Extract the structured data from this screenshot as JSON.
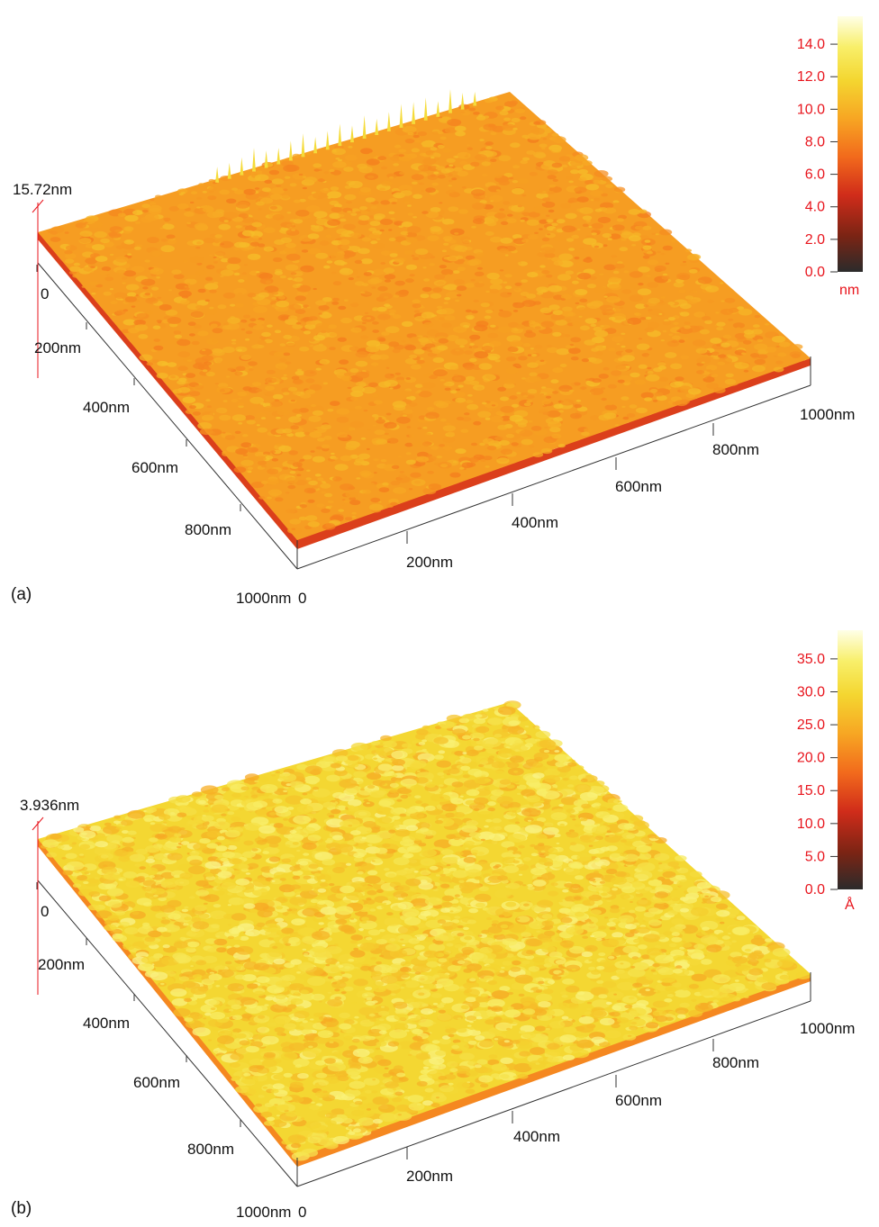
{
  "figure": {
    "panels": [
      {
        "tag": "(a)",
        "zmax_label": "15.72nm",
        "x_axis_ticks": [
          "0",
          "200nm",
          "400nm",
          "600nm",
          "800nm",
          "1000nm"
        ],
        "y_axis_ticks": [
          "0",
          "200nm",
          "400nm",
          "600nm",
          "800nm",
          "1000nm"
        ],
        "colorbar": {
          "unit": "nm",
          "ticks": [
            "0.0",
            "2.0",
            "4.0",
            "6.0",
            "8.0",
            "10.0",
            "12.0",
            "14.0"
          ],
          "tick_values": [
            0,
            2,
            4,
            6,
            8,
            10,
            12,
            14
          ],
          "range": [
            0,
            15.72
          ]
        },
        "surface": {
          "roughness": "low",
          "base_level": 0.55
        }
      },
      {
        "tag": "(b)",
        "zmax_label": "3.936nm",
        "x_axis_ticks": [
          "0",
          "200nm",
          "400nm",
          "600nm",
          "800nm",
          "1000nm"
        ],
        "y_axis_ticks": [
          "0",
          "200nm",
          "400nm",
          "600nm",
          "800nm",
          "1000nm"
        ],
        "colorbar": {
          "unit": "Å",
          "ticks": [
            "0.0",
            "5.0",
            "10.0",
            "15.0",
            "20.0",
            "25.0",
            "30.0",
            "35.0"
          ],
          "tick_values": [
            0,
            5,
            10,
            15,
            20,
            25,
            30,
            35
          ],
          "range": [
            0,
            39.36
          ]
        },
        "surface": {
          "roughness": "high",
          "base_level": 0.72
        }
      }
    ],
    "colormap": [
      "#2b2b2b",
      "#7a2414",
      "#d02c1a",
      "#f26a1c",
      "#f7a623",
      "#f4d630",
      "#f8ef6a",
      "#ffffe8"
    ],
    "axis_color": "#333333",
    "tick_label_color_colorbar": "#e8141c"
  }
}
